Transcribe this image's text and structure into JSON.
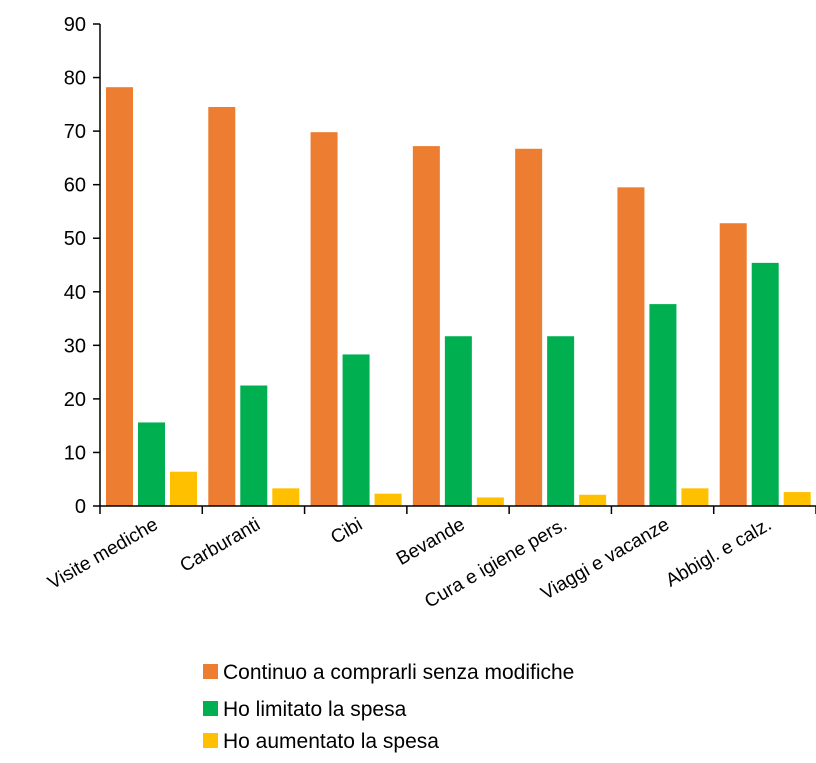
{
  "chart_data": {
    "type": "bar",
    "categories": [
      "Visite mediche",
      "Carburanti",
      "Cibi",
      "Bevande",
      "Cura e igiene pers.",
      "Viaggi e vacanze",
      "Abbigl. e calz."
    ],
    "series": [
      {
        "name": "Continuo a comprarli senza modifiche",
        "color": "#ED7D31",
        "values": [
          78.2,
          74.5,
          69.8,
          67.2,
          66.7,
          59.5,
          52.8
        ]
      },
      {
        "name": "Ho limitato la spesa",
        "color": "#00B050",
        "values": [
          15.6,
          22.5,
          28.3,
          31.7,
          31.7,
          37.7,
          45.4
        ]
      },
      {
        "name": "Ho aumentato la spesa",
        "color": "#FFC000",
        "values": [
          6.4,
          3.3,
          2.3,
          1.6,
          2.1,
          3.3,
          2.6
        ]
      }
    ],
    "y_ticks": [
      "0",
      "10",
      "20",
      "30",
      "40",
      "50",
      "60",
      "70",
      "80",
      "90"
    ],
    "ylim": [
      0,
      90
    ],
    "grid": false,
    "legend_position": "bottom",
    "title": "",
    "xlabel": "",
    "ylabel": ""
  }
}
